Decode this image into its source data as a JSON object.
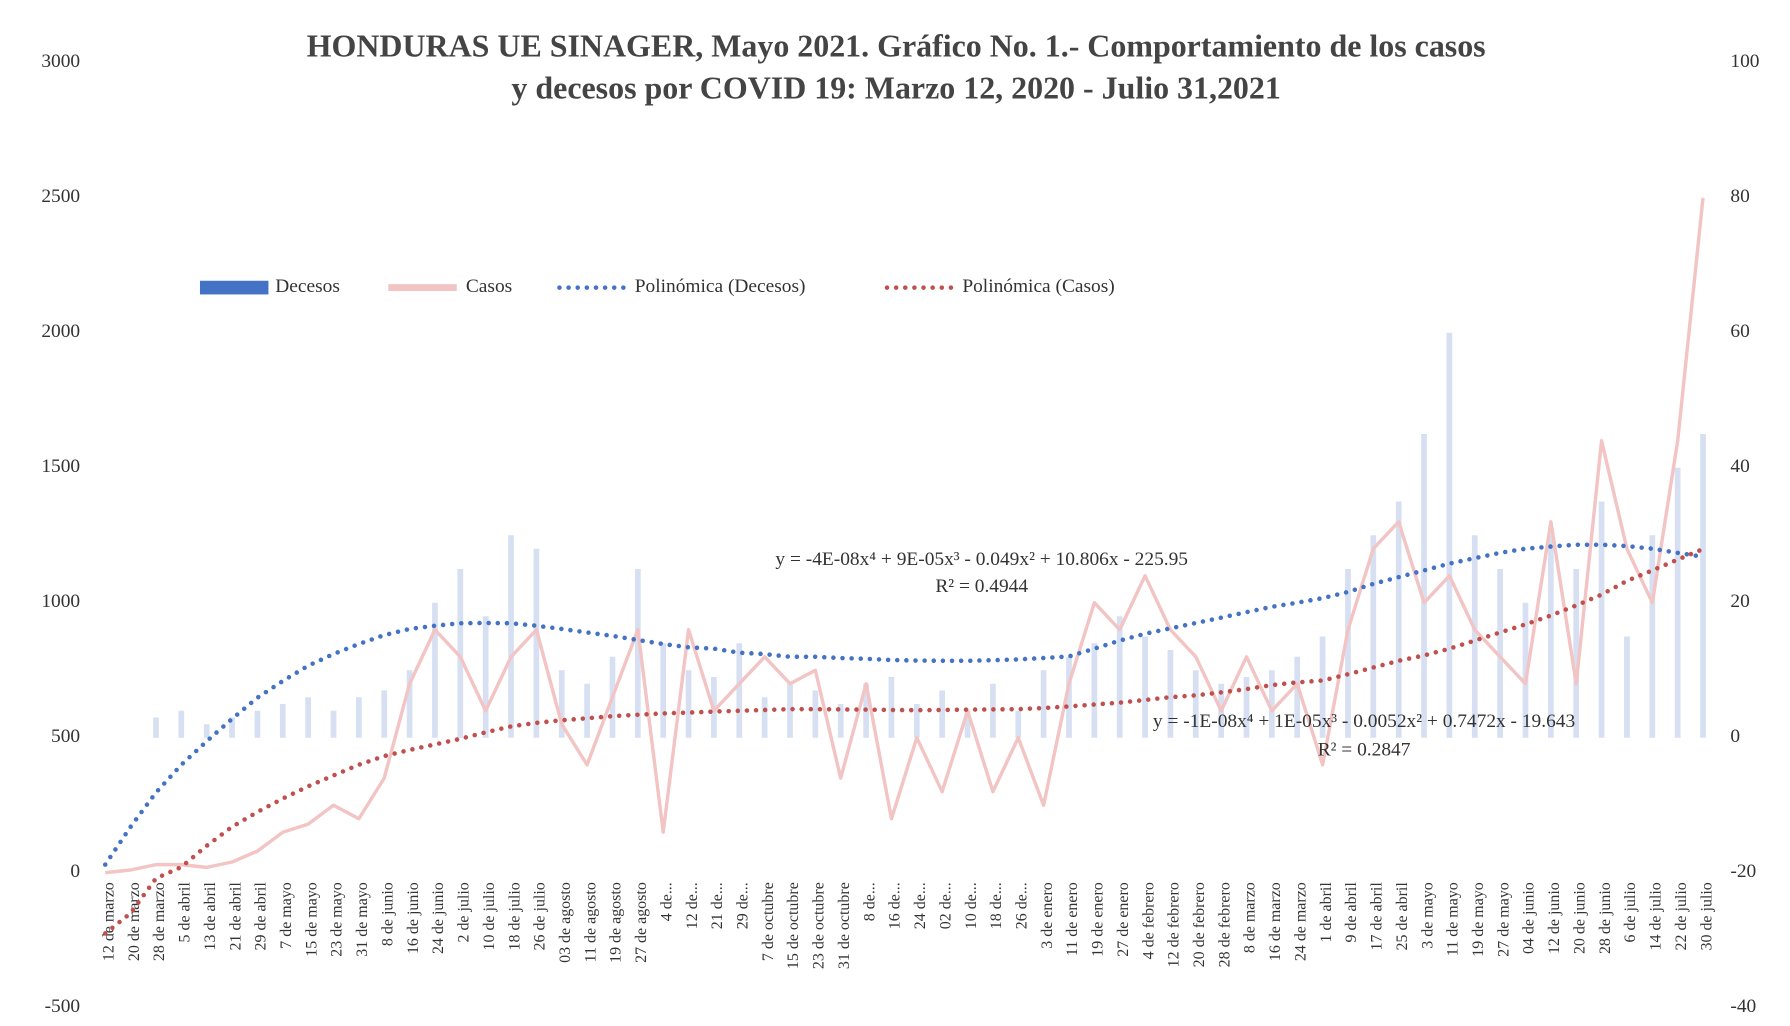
{
  "chart_data": {
    "type": "bar",
    "title": [
      "HONDURAS UE SINAGER, Mayo 2021.  Gráfico No. 1.- Comportamiento de los casos",
      "y decesos por COVID 19: Marzo 12, 2020 - Julio 31,2021"
    ],
    "categories": [
      "12 de marzo",
      "20 de marzo",
      "28 de marzo",
      "5 de abril",
      "13 de abril",
      "21 de abril",
      "29 de abril",
      "7 de mayo",
      "15 de mayo",
      "23 de mayo",
      "31 de mayo",
      "8 de junio",
      "16 de junio",
      "24 de junio",
      "2 de julio",
      "10 de julio",
      "18 de julio",
      "26 de julio",
      "03 de agosto",
      "11 de agosto",
      "19 de agosto",
      "27 de agosto",
      "4 de...",
      "12 de...",
      "21 de...",
      "29 de...",
      "7 de octubre",
      "15 de octubre",
      "23 de octubre",
      "31 de octubre",
      "8 de...",
      "16 de...",
      "24 de...",
      "02 de...",
      "10 de...",
      "18 de...",
      "26 de...",
      "3 de enero",
      "11 de enero",
      "19 de enero",
      "27 de enero",
      "4 de febrero",
      "12 de febrero",
      "20 de febrero",
      "28 de febrero",
      "8 de marzo",
      "16 de marzo",
      "24 de marzo",
      "1 de abril",
      "9 de abril",
      "17 de abril",
      "25 de abril",
      "3 de mayo",
      "11 de mayo",
      "19 de mayo",
      "27 de mayo",
      "04 de junio",
      "12 de junio",
      "20 de junio",
      "28 de junio",
      "6 de julio",
      "14 de julio",
      "22 de julio",
      "30 de julio"
    ],
    "series": [
      {
        "name": "Decesos",
        "type": "bar",
        "axis": "y2",
        "color": "#4472c4",
        "values": [
          0,
          0,
          3,
          4,
          2,
          3,
          4,
          5,
          6,
          4,
          6,
          7,
          10,
          20,
          25,
          18,
          30,
          28,
          10,
          8,
          12,
          25,
          14,
          10,
          9,
          14,
          6,
          8,
          7,
          5,
          8,
          9,
          5,
          7,
          4,
          8,
          4,
          10,
          12,
          14,
          18,
          15,
          13,
          10,
          8,
          9,
          10,
          12,
          15,
          25,
          30,
          35,
          45,
          60,
          30,
          25,
          20,
          30,
          25,
          35,
          15,
          30,
          40,
          45
        ]
      },
      {
        "name": "Casos",
        "type": "line",
        "color": "#f2c4c4",
        "values": [
          0,
          10,
          30,
          30,
          20,
          40,
          80,
          150,
          180,
          250,
          200,
          350,
          700,
          900,
          800,
          600,
          800,
          900,
          550,
          400,
          650,
          900,
          150,
          900,
          600,
          700,
          800,
          700,
          750,
          350,
          700,
          200,
          500,
          300,
          600,
          300,
          500,
          250,
          700,
          1000,
          900,
          1100,
          900,
          800,
          600,
          800,
          600,
          700,
          400,
          900,
          1200,
          1300,
          1000,
          1100,
          900,
          800,
          700,
          1300,
          700,
          1600,
          1200,
          1000,
          1600,
          2500
        ]
      },
      {
        "name": "Polinómica (Decesos)",
        "type": "trend",
        "color": "#4472c4",
        "values": [
          30,
          170,
          297,
          400,
          487,
          570,
          648,
          710,
          767,
          810,
          847,
          880,
          903,
          915,
          924,
          925,
          924,
          915,
          903,
          890,
          877,
          862,
          847,
          835,
          830,
          815,
          810,
          800,
          800,
          795,
          792,
          788,
          786,
          785,
          785,
          787,
          790,
          795,
          801,
          830,
          860,
          885,
          905,
          925,
          945,
          965,
          985,
          1000,
          1017,
          1040,
          1070,
          1095,
          1120,
          1145,
          1165,
          1185,
          1200,
          1208,
          1215,
          1215,
          1210,
          1200,
          1185,
          1170
        ]
      },
      {
        "name": "Polinómica (Casos)",
        "type": "trend",
        "color": "#c0504d",
        "values": [
          -225,
          -150,
          -21,
          21,
          100,
          170,
          225,
          275,
          320,
          360,
          400,
          432,
          455,
          475,
          496,
          520,
          542,
          555,
          565,
          572,
          580,
          585,
          590,
          593,
          597,
          600,
          603,
          606,
          606,
          605,
          604,
          603,
          602,
          603,
          604,
          605,
          606,
          610,
          616,
          623,
          630,
          640,
          650,
          657,
          668,
          680,
          695,
          705,
          712,
          735,
          760,
          785,
          805,
          830,
          860,
          890,
          920,
          953,
          990,
          1030,
          1081,
          1120,
          1160,
          1199
        ]
      }
    ],
    "ylim": [
      -500,
      3000
    ],
    "yticks": [
      -500,
      0,
      500,
      1000,
      1500,
      2000,
      2500,
      3000
    ],
    "y2lim": [
      -40,
      100
    ],
    "y2ticks": [
      -40,
      -20,
      0,
      20,
      40,
      60,
      80,
      100
    ],
    "annotations": [
      "y = -4E-08x⁴ + 9E-05x³ - 0.049x² + 10.806x - 225.95",
      "R² = 0.4944",
      "y = -1E-08x⁴ + 1E-05x³ - 0.0052x² + 0.7472x - 19.643",
      "R² = 0.2847"
    ]
  }
}
